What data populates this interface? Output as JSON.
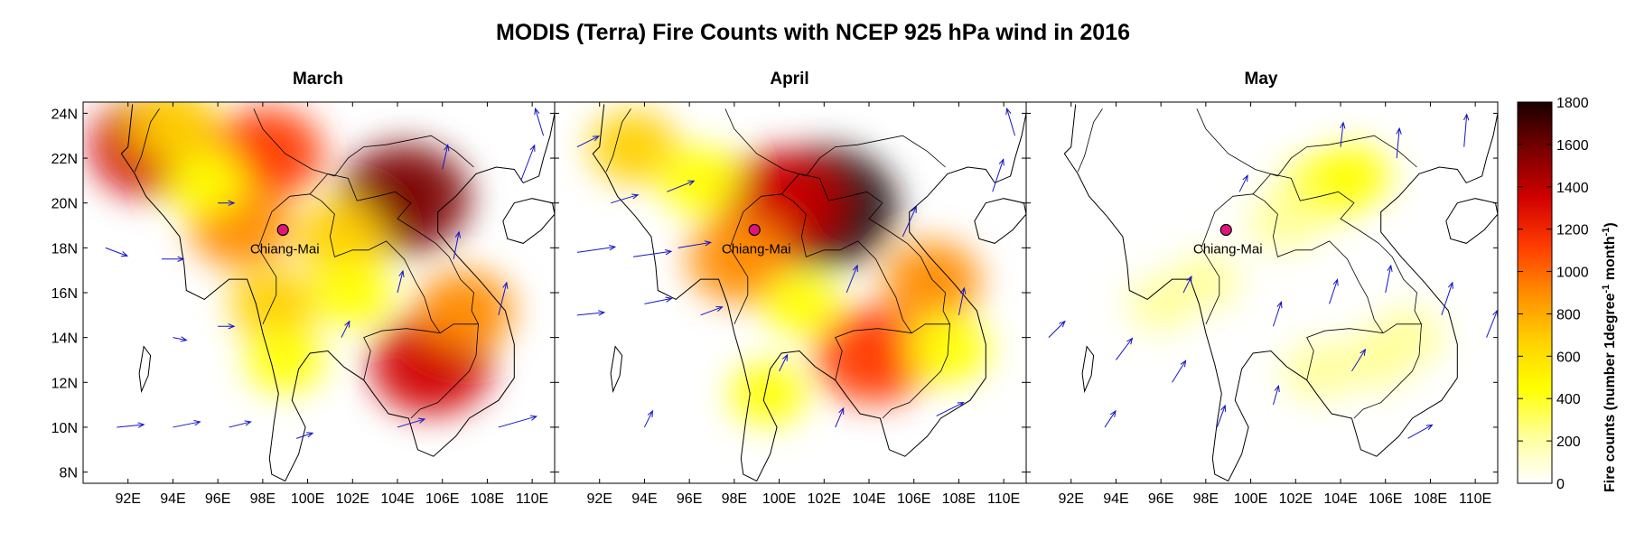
{
  "title": "MODIS (Terra) Fire Counts with NCEP 925 hPa wind in 2016",
  "panels": [
    {
      "title": "March"
    },
    {
      "title": "April"
    },
    {
      "title": "May"
    }
  ],
  "axes": {
    "lat_ticks": [
      "24N",
      "22N",
      "20N",
      "18N",
      "16N",
      "14N",
      "12N",
      "10N",
      "8N"
    ],
    "lat_values": [
      24,
      22,
      20,
      18,
      16,
      14,
      12,
      10,
      8
    ],
    "lon_ticks": [
      "92E",
      "94E",
      "96E",
      "98E",
      "100E",
      "102E",
      "104E",
      "106E",
      "108E",
      "110E"
    ],
    "lon_values": [
      92,
      94,
      96,
      98,
      100,
      102,
      104,
      106,
      108,
      110
    ],
    "lon_range": [
      90,
      111
    ],
    "lat_range": [
      7.5,
      24.5
    ]
  },
  "city": {
    "name": "Chiang Mai",
    "label": "Chiang-Mai",
    "lon": 98.9,
    "lat": 18.8,
    "color": "#e0157a"
  },
  "colorbar": {
    "label_main": "Fire counts (number 1degree",
    "label_sup1": "-1",
    "label_mid": " month",
    "label_sup2": "-1",
    "label_end": ")",
    "ticks": [
      "1800",
      "1600",
      "1400",
      "1200",
      "1000",
      "800",
      "600",
      "400",
      "200",
      "0"
    ],
    "tick_values": [
      1800,
      1600,
      1400,
      1200,
      1000,
      800,
      600,
      400,
      200,
      0
    ],
    "range": [
      0,
      1800
    ],
    "colors": [
      "#ffffff",
      "#ffff9a",
      "#ffff00",
      "#ffd000",
      "#ff8c00",
      "#ff3a00",
      "#d00000",
      "#7a0000",
      "#1a0000"
    ]
  },
  "chart_data": {
    "type": "heatmap",
    "variable": "fire counts",
    "units": "number 1degree-1 month-1",
    "months": [
      "March",
      "April",
      "May"
    ],
    "fire_hotspots": [
      [
        {
          "lon": 93.0,
          "lat": 22.5,
          "value": 1300
        },
        {
          "lon": 94.0,
          "lat": 23.5,
          "value": 700
        },
        {
          "lon": 98.2,
          "lat": 22.2,
          "value": 1100
        },
        {
          "lon": 97.0,
          "lat": 19.0,
          "value": 900
        },
        {
          "lon": 95.5,
          "lat": 21.0,
          "value": 500
        },
        {
          "lon": 104.3,
          "lat": 20.2,
          "value": 1500
        },
        {
          "lon": 101.5,
          "lat": 18.5,
          "value": 700
        },
        {
          "lon": 105.5,
          "lat": 12.8,
          "value": 1300
        },
        {
          "lon": 107.0,
          "lat": 15.2,
          "value": 800
        },
        {
          "lon": 98.5,
          "lat": 15.5,
          "value": 600
        },
        {
          "lon": 102.0,
          "lat": 16.0,
          "value": 450
        },
        {
          "lon": 99.0,
          "lat": 13.0,
          "value": 400
        }
      ],
      [
        {
          "lon": 102.0,
          "lat": 19.8,
          "value": 1800
        },
        {
          "lon": 100.0,
          "lat": 20.0,
          "value": 1400
        },
        {
          "lon": 98.3,
          "lat": 17.5,
          "value": 1000
        },
        {
          "lon": 104.2,
          "lat": 13.2,
          "value": 1200
        },
        {
          "lon": 106.8,
          "lat": 16.5,
          "value": 800
        },
        {
          "lon": 93.5,
          "lat": 22.5,
          "value": 600
        },
        {
          "lon": 96.5,
          "lat": 21.0,
          "value": 500
        },
        {
          "lon": 101.0,
          "lat": 15.5,
          "value": 350
        },
        {
          "lon": 107.5,
          "lat": 13.5,
          "value": 500
        },
        {
          "lon": 99.5,
          "lat": 11.5,
          "value": 350
        }
      ],
      [
        {
          "lon": 103.0,
          "lat": 20.5,
          "value": 400
        },
        {
          "lon": 104.5,
          "lat": 21.2,
          "value": 350
        },
        {
          "lon": 101.5,
          "lat": 19.2,
          "value": 300
        },
        {
          "lon": 105.5,
          "lat": 13.0,
          "value": 280
        },
        {
          "lon": 103.0,
          "lat": 12.5,
          "value": 250
        },
        {
          "lon": 107.0,
          "lat": 14.0,
          "value": 250
        },
        {
          "lon": 98.0,
          "lat": 16.5,
          "value": 200
        },
        {
          "lon": 96.0,
          "lat": 15.5,
          "value": 150
        }
      ]
    ],
    "wind_vectors": [
      [
        {
          "lon": 91.5,
          "lat": 10.0,
          "u": 1.0,
          "v": 0.1
        },
        {
          "lon": 94.0,
          "lat": 10.0,
          "u": 1.0,
          "v": 0.2
        },
        {
          "lon": 96.5,
          "lat": 10.0,
          "u": 0.8,
          "v": 0.2
        },
        {
          "lon": 104.0,
          "lat": 10.0,
          "u": 1.0,
          "v": 0.3
        },
        {
          "lon": 108.5,
          "lat": 10.0,
          "u": 1.4,
          "v": 0.4
        },
        {
          "lon": 101.5,
          "lat": 14.0,
          "u": 0.3,
          "v": 0.6
        },
        {
          "lon": 106.5,
          "lat": 17.5,
          "u": 0.2,
          "v": 1.0
        },
        {
          "lon": 108.5,
          "lat": 15.0,
          "u": 0.3,
          "v": 1.2
        },
        {
          "lon": 109.5,
          "lat": 21.0,
          "u": 0.5,
          "v": 1.3
        },
        {
          "lon": 110.5,
          "lat": 23.0,
          "u": -0.3,
          "v": 1.0
        },
        {
          "lon": 91.0,
          "lat": 18.0,
          "u": 0.8,
          "v": -0.3
        },
        {
          "lon": 93.5,
          "lat": 17.5,
          "u": 0.8,
          "v": 0.0
        },
        {
          "lon": 96.0,
          "lat": 20.0,
          "u": 0.6,
          "v": 0.0
        },
        {
          "lon": 96.0,
          "lat": 14.5,
          "u": 0.6,
          "v": 0.0
        },
        {
          "lon": 94.0,
          "lat": 14.0,
          "u": 0.5,
          "v": -0.1
        },
        {
          "lon": 104.0,
          "lat": 16.0,
          "u": 0.2,
          "v": 0.8
        },
        {
          "lon": 106.0,
          "lat": 21.5,
          "u": 0.2,
          "v": 0.9
        },
        {
          "lon": 99.5,
          "lat": 9.5,
          "u": 0.6,
          "v": 0.2
        }
      ],
      [
        {
          "lon": 91.0,
          "lat": 17.8,
          "u": 1.4,
          "v": 0.2
        },
        {
          "lon": 93.5,
          "lat": 17.6,
          "u": 1.4,
          "v": 0.2
        },
        {
          "lon": 95.5,
          "lat": 18.0,
          "u": 1.2,
          "v": 0.2
        },
        {
          "lon": 91.0,
          "lat": 15.0,
          "u": 1.0,
          "v": 0.1
        },
        {
          "lon": 94.0,
          "lat": 15.5,
          "u": 1.0,
          "v": 0.2
        },
        {
          "lon": 96.5,
          "lat": 15.0,
          "u": 0.8,
          "v": 0.3
        },
        {
          "lon": 92.5,
          "lat": 20.0,
          "u": 1.0,
          "v": 0.3
        },
        {
          "lon": 95.0,
          "lat": 20.5,
          "u": 1.0,
          "v": 0.4
        },
        {
          "lon": 91.0,
          "lat": 22.5,
          "u": 0.8,
          "v": 0.4
        },
        {
          "lon": 103.0,
          "lat": 16.0,
          "u": 0.4,
          "v": 1.0
        },
        {
          "lon": 105.5,
          "lat": 18.5,
          "u": 0.5,
          "v": 1.1
        },
        {
          "lon": 108.0,
          "lat": 15.0,
          "u": 0.2,
          "v": 1.0
        },
        {
          "lon": 109.5,
          "lat": 20.5,
          "u": 0.4,
          "v": 1.2
        },
        {
          "lon": 110.5,
          "lat": 23.0,
          "u": -0.3,
          "v": 1.0
        },
        {
          "lon": 100.0,
          "lat": 12.5,
          "u": 0.3,
          "v": 0.6
        },
        {
          "lon": 102.5,
          "lat": 10.0,
          "u": 0.3,
          "v": 0.7
        },
        {
          "lon": 107.0,
          "lat": 10.5,
          "u": 1.0,
          "v": 0.5
        },
        {
          "lon": 94.0,
          "lat": 10.0,
          "u": 0.3,
          "v": 0.6
        }
      ],
      [
        {
          "lon": 91.0,
          "lat": 14.0,
          "u": 0.6,
          "v": 0.6
        },
        {
          "lon": 94.0,
          "lat": 13.0,
          "u": 0.6,
          "v": 0.8
        },
        {
          "lon": 96.5,
          "lat": 12.0,
          "u": 0.5,
          "v": 0.8
        },
        {
          "lon": 93.5,
          "lat": 10.0,
          "u": 0.4,
          "v": 0.6
        },
        {
          "lon": 98.5,
          "lat": 10.0,
          "u": 0.3,
          "v": 0.8
        },
        {
          "lon": 101.0,
          "lat": 14.5,
          "u": 0.3,
          "v": 0.9
        },
        {
          "lon": 103.5,
          "lat": 15.5,
          "u": 0.3,
          "v": 0.9
        },
        {
          "lon": 106.0,
          "lat": 16.0,
          "u": 0.2,
          "v": 1.0
        },
        {
          "lon": 108.5,
          "lat": 15.0,
          "u": 0.4,
          "v": 1.2
        },
        {
          "lon": 110.5,
          "lat": 14.0,
          "u": 0.4,
          "v": 1.0
        },
        {
          "lon": 104.0,
          "lat": 22.5,
          "u": 0.1,
          "v": 0.9
        },
        {
          "lon": 106.5,
          "lat": 22.0,
          "u": 0.1,
          "v": 1.1
        },
        {
          "lon": 109.5,
          "lat": 22.5,
          "u": 0.1,
          "v": 1.2
        },
        {
          "lon": 101.0,
          "lat": 11.0,
          "u": 0.2,
          "v": 0.7
        },
        {
          "lon": 107.0,
          "lat": 9.5,
          "u": 0.9,
          "v": 0.5
        },
        {
          "lon": 104.5,
          "lat": 12.5,
          "u": 0.5,
          "v": 0.8
        },
        {
          "lon": 97.0,
          "lat": 16.0,
          "u": 0.3,
          "v": 0.6
        },
        {
          "lon": 99.5,
          "lat": 20.5,
          "u": 0.3,
          "v": 0.6
        }
      ]
    ]
  }
}
